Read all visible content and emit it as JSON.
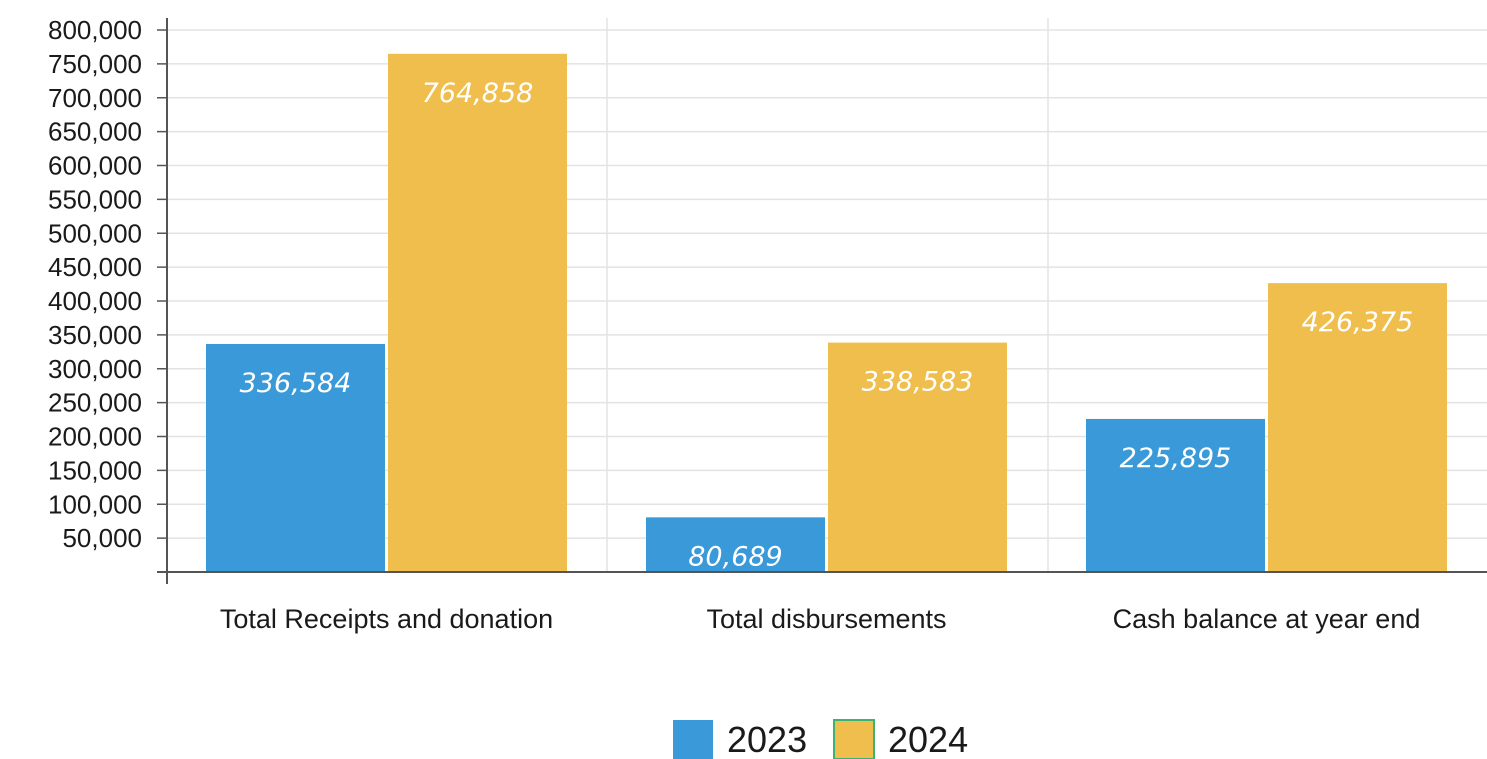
{
  "chart_data": {
    "type": "bar",
    "categories": [
      "Total Receipts and donation",
      "Total disbursements",
      "Cash balance at year end"
    ],
    "series": [
      {
        "name": "2023",
        "color": "#3a99d8",
        "values": [
          336584,
          80689,
          225895
        ],
        "data_labels": [
          "336,584",
          "80,689",
          "225,895"
        ]
      },
      {
        "name": "2024",
        "color": "#efbe4d",
        "values": [
          764858,
          338583,
          426375
        ],
        "data_labels": [
          "764,858",
          "338,583",
          "426,375"
        ]
      }
    ],
    "ylim": [
      0,
      800000
    ],
    "yticks": [
      50000,
      100000,
      150000,
      200000,
      250000,
      300000,
      350000,
      400000,
      450000,
      500000,
      550000,
      600000,
      650000,
      700000,
      750000,
      800000
    ],
    "ytick_labels": [
      "50,000",
      "100,000",
      "150,000",
      "200,000",
      "250,000",
      "300,000",
      "350,000",
      "400,000",
      "450,000",
      "500,000",
      "550,000",
      "600,000",
      "650,000",
      "700,000",
      "750,000",
      "800,000"
    ],
    "grid": true,
    "legend_position": "bottom-center",
    "legend_border_color_2024": "#3cb371",
    "axis_color": "#555555",
    "grid_color": "#e3e3e3"
  }
}
